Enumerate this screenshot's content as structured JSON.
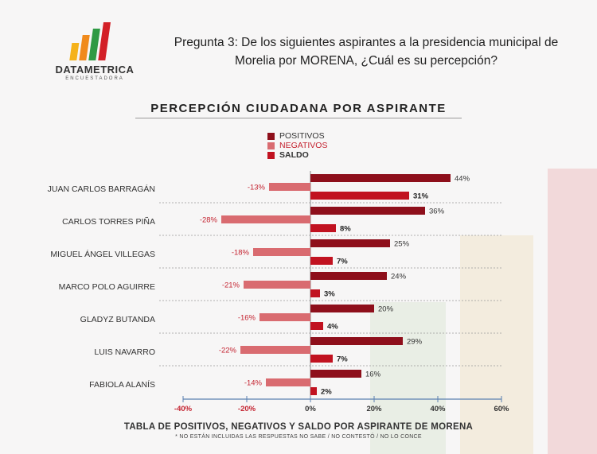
{
  "logo": {
    "name": "DATAMETRICA",
    "subtitle": "ENCUESTADORA"
  },
  "question": "Pregunta 3: De los siguientes aspirantes a la presidencia municipal de Morelia por MORENA, ¿Cuál es su percepción?",
  "colors": {
    "positivos": "#8e0f1b",
    "negativos": "#d96b70",
    "saldo": "#c11220",
    "legend_negativos_text": "#c42330",
    "axis": "#5a7fb0"
  },
  "chart_data": {
    "type": "bar",
    "orientation": "horizontal",
    "title": "PERCEPCIÓN CIUDADANA POR ASPIRANTE",
    "categories": [
      "JUAN CARLOS BARRAGÁN",
      "CARLOS TORRES PIÑA",
      "MIGUEL ÁNGEL VILLEGAS",
      "MARCO POLO AGUIRRE",
      "GLADYZ BUTANDA",
      "LUIS NAVARRO",
      "FABIOLA ALANÍS"
    ],
    "series": [
      {
        "name": "POSITIVOS",
        "values": [
          44,
          36,
          25,
          24,
          20,
          29,
          16
        ],
        "labels": [
          "44%",
          "36%",
          "25%",
          "24%",
          "20%",
          "29%",
          "16%"
        ]
      },
      {
        "name": "NEGATIVOS",
        "values": [
          -13,
          -28,
          -18,
          -21,
          -16,
          -22,
          -14
        ],
        "labels": [
          "-13%",
          "-28%",
          "-18%",
          "-21%",
          "-16%",
          "-22%",
          "-14%"
        ]
      },
      {
        "name": "SALDO",
        "values": [
          31,
          8,
          7,
          3,
          4,
          7,
          2
        ],
        "labels": [
          "31%",
          "8%",
          "7%",
          "3%",
          "4%",
          "7%",
          "2%"
        ]
      }
    ],
    "xlim": [
      -40,
      60
    ],
    "xticks": [
      "-40%",
      "-20%",
      "0%",
      "20%",
      "40%",
      "60%"
    ],
    "xlabel": "TABLA DE POSITIVOS, NEGATIVOS Y SALDO POR ASPIRANTE DE MORENA",
    "note": "* NO ESTÁN INCLUIDAS LAS RESPUESTAS NO SABE / NO CONTESTÓ / NO LO CONCE",
    "legend": "top-center"
  }
}
